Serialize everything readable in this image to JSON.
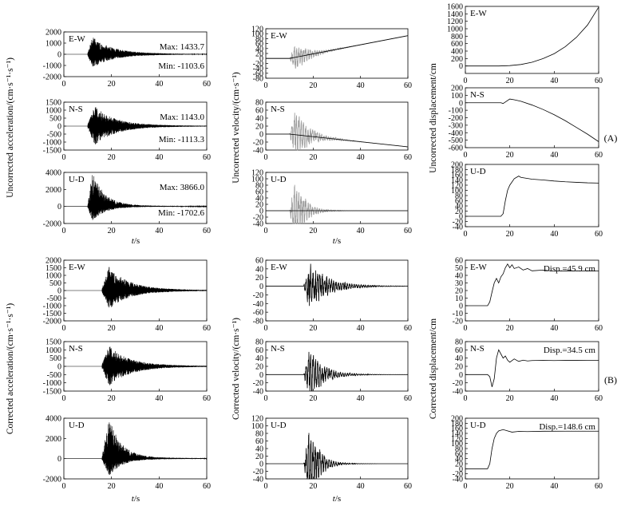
{
  "chart_data": {
    "type": "line",
    "panel_labels": [
      "(A)",
      "(B)"
    ],
    "components": [
      "E-W",
      "N-S",
      "U-D"
    ],
    "x_label": "t/s",
    "ylabels": {
      "unc_acc": "Uncorrected acceleration/(cm·s⁻¹·s⁻¹)",
      "unc_vel": "Uncorrected velocity/(cm·s⁻¹)",
      "unc_disp": "Uncorrected displacement/cm",
      "cor_acc": "Corrected acceleration/(cm·s⁻¹·s⁻¹)",
      "cor_vel": "Corrected velocity/(cm·s⁻¹)",
      "cor_disp": "Corrected displacement/cm"
    },
    "x_range": [
      0,
      60
    ],
    "x_ticks": [
      0,
      20,
      40,
      60
    ],
    "panels": [
      {
        "id": "unc_acc_ew",
        "group": "unc_acc",
        "label": "E-W",
        "kind": "acc",
        "yticks": [
          -2000,
          -1000,
          0,
          1000,
          2000
        ],
        "ylim": [
          -2000,
          2000
        ],
        "onset": 10,
        "peak_t": 12,
        "decay": 8,
        "tail": 0.1,
        "max": 1433.7,
        "min": -1103.6,
        "ann_max": "Max: 1433.7",
        "ann_min": "Min: -1103.6",
        "color": "#000"
      },
      {
        "id": "unc_acc_ns",
        "group": "unc_acc",
        "label": "N-S",
        "kind": "acc",
        "yticks": [
          -1500,
          -1000,
          -500,
          0,
          500,
          1000,
          1500
        ],
        "ylim": [
          -1500,
          1500
        ],
        "onset": 10,
        "peak_t": 13,
        "decay": 8,
        "tail": 0.1,
        "max": 1143.0,
        "min": -1113.3,
        "ann_max": "Max: 1143.0",
        "ann_min": "Min: -1113.3",
        "color": "#000"
      },
      {
        "id": "unc_acc_ud",
        "group": "unc_acc",
        "label": "U-D",
        "kind": "acc",
        "yticks": [
          -2000,
          0,
          2000,
          4000
        ],
        "ylim": [
          -2000,
          4000
        ],
        "onset": 10,
        "peak_t": 12,
        "decay": 5,
        "tail": 0.05,
        "max": 3866.0,
        "min": -1702.6,
        "ann_max": "Max: 3866.0",
        "ann_min": "Min: -1702.6",
        "color": "#000"
      },
      {
        "id": "unc_vel_ew",
        "group": "unc_vel",
        "label": "E-W",
        "kind": "vel_drift",
        "yticks": [
          -80,
          -60,
          -40,
          -20,
          0,
          20,
          40,
          60,
          80,
          100,
          120
        ],
        "ylim": [
          -80,
          120
        ],
        "onset": 10,
        "decay": 6,
        "amp": 55,
        "drift": [
          [
            10,
            0
          ],
          [
            60,
            92
          ]
        ],
        "color": "#999"
      },
      {
        "id": "unc_vel_ns",
        "group": "unc_vel",
        "label": "N-S",
        "kind": "vel_drift",
        "yticks": [
          -40,
          -20,
          0,
          20,
          40,
          60,
          80
        ],
        "ylim": [
          -40,
          80
        ],
        "onset": 10,
        "decay": 6,
        "amp": 60,
        "drift": [
          [
            10,
            0
          ],
          [
            60,
            -32
          ]
        ],
        "color": "#999"
      },
      {
        "id": "unc_vel_ud",
        "group": "unc_vel",
        "label": "U-D",
        "kind": "vel_drift",
        "yticks": [
          -40,
          -20,
          0,
          20,
          40,
          60,
          80,
          100,
          120
        ],
        "ylim": [
          -40,
          120
        ],
        "onset": 10,
        "decay": 4,
        "amp": 100,
        "drift": [
          [
            10,
            0
          ],
          [
            60,
            0
          ]
        ],
        "color": "#999"
      },
      {
        "id": "unc_disp_ew",
        "group": "unc_disp",
        "label": "E-W",
        "kind": "disp_curve",
        "yticks": [
          0,
          200,
          400,
          600,
          800,
          1000,
          1200,
          1400,
          1600
        ],
        "ylim": [
          -200,
          1600
        ],
        "curve": [
          [
            0,
            0
          ],
          [
            15,
            0
          ],
          [
            20,
            10
          ],
          [
            25,
            40
          ],
          [
            30,
            100
          ],
          [
            35,
            200
          ],
          [
            40,
            330
          ],
          [
            45,
            520
          ],
          [
            50,
            770
          ],
          [
            55,
            1100
          ],
          [
            60,
            1580
          ]
        ],
        "color": "#000"
      },
      {
        "id": "unc_disp_ns",
        "group": "unc_disp",
        "label": "N-S",
        "kind": "disp_curve",
        "yticks": [
          -600,
          -500,
          -400,
          -300,
          -200,
          -100,
          0,
          100,
          200
        ],
        "ylim": [
          -600,
          200
        ],
        "curve": [
          [
            0,
            0
          ],
          [
            16,
            0
          ],
          [
            17,
            -10
          ],
          [
            18,
            10
          ],
          [
            20,
            50
          ],
          [
            22,
            40
          ],
          [
            25,
            20
          ],
          [
            30,
            -30
          ],
          [
            35,
            -90
          ],
          [
            40,
            -160
          ],
          [
            45,
            -240
          ],
          [
            50,
            -330
          ],
          [
            55,
            -420
          ],
          [
            60,
            -520
          ]
        ],
        "color": "#000"
      },
      {
        "id": "unc_disp_ud",
        "group": "unc_disp",
        "label": "U-D",
        "kind": "disp_curve",
        "yticks": [
          -40,
          -20,
          0,
          20,
          40,
          60,
          80,
          100,
          120,
          140,
          160,
          180,
          200
        ],
        "ylim": [
          -40,
          200
        ],
        "curve": [
          [
            0,
            0
          ],
          [
            16,
            0
          ],
          [
            17,
            10
          ],
          [
            18,
            60
          ],
          [
            19,
            100
          ],
          [
            20,
            120
          ],
          [
            22,
            145
          ],
          [
            24,
            155
          ],
          [
            25,
            150
          ],
          [
            30,
            143
          ],
          [
            35,
            140
          ],
          [
            40,
            136
          ],
          [
            45,
            133
          ],
          [
            50,
            131
          ],
          [
            55,
            129
          ],
          [
            60,
            128
          ]
        ],
        "color": "#000"
      },
      {
        "id": "cor_acc_ew",
        "group": "cor_acc",
        "label": "E-W",
        "kind": "acc",
        "yticks": [
          -2000,
          -1500,
          -1000,
          -500,
          0,
          500,
          1000,
          1500,
          2000
        ],
        "ylim": [
          -2000,
          2000
        ],
        "onset": 16,
        "peak_t": 19,
        "decay": 8,
        "tail": 0.1,
        "max": 1433.7,
        "min": -1103.6,
        "ann_max": "",
        "ann_min": "",
        "color": "#000"
      },
      {
        "id": "cor_acc_ns",
        "group": "cor_acc",
        "label": "N-S",
        "kind": "acc",
        "yticks": [
          -1500,
          -1000,
          -500,
          0,
          500,
          1000,
          1500
        ],
        "ylim": [
          -1500,
          1500
        ],
        "onset": 16,
        "peak_t": 19,
        "decay": 8,
        "tail": 0.1,
        "max": 1143.0,
        "min": -1113.3,
        "ann_max": "",
        "ann_min": "",
        "color": "#000"
      },
      {
        "id": "cor_acc_ud",
        "group": "cor_acc",
        "label": "U-D",
        "kind": "acc",
        "yticks": [
          -2000,
          0,
          2000,
          4000
        ],
        "ylim": [
          -2000,
          4000
        ],
        "onset": 16,
        "peak_t": 19,
        "decay": 5,
        "tail": 0.05,
        "max": 3866.0,
        "min": -1702.6,
        "ann_max": "",
        "ann_min": "",
        "color": "#000"
      },
      {
        "id": "cor_vel_ew",
        "group": "cor_vel",
        "label": "E-W",
        "kind": "vel",
        "yticks": [
          -80,
          -60,
          -40,
          -20,
          0,
          20,
          40,
          60
        ],
        "ylim": [
          -80,
          60
        ],
        "onset": 16,
        "decay": 8,
        "amp": 55,
        "color": "#000"
      },
      {
        "id": "cor_vel_ns",
        "group": "cor_vel",
        "label": "N-S",
        "kind": "vel",
        "yticks": [
          -40,
          -20,
          0,
          20,
          40,
          60,
          80
        ],
        "ylim": [
          -40,
          80
        ],
        "onset": 16,
        "decay": 6,
        "amp": 60,
        "color": "#000"
      },
      {
        "id": "cor_vel_ud",
        "group": "cor_vel",
        "label": "U-D",
        "kind": "vel",
        "yticks": [
          -40,
          -20,
          0,
          20,
          40,
          60,
          80,
          100,
          120
        ],
        "ylim": [
          -40,
          120
        ],
        "onset": 16,
        "decay": 4,
        "amp": 100,
        "color": "#000"
      },
      {
        "id": "cor_disp_ew",
        "group": "cor_disp",
        "label": "E-W",
        "kind": "disp_curve",
        "yticks": [
          -20,
          -10,
          0,
          10,
          20,
          30,
          40,
          50,
          60
        ],
        "ylim": [
          -20,
          60
        ],
        "curve": [
          [
            0,
            0
          ],
          [
            10,
            0
          ],
          [
            11,
            5
          ],
          [
            12,
            18
          ],
          [
            13,
            30
          ],
          [
            14,
            36
          ],
          [
            15,
            30
          ],
          [
            16,
            38
          ],
          [
            17,
            42
          ],
          [
            18,
            50
          ],
          [
            19,
            55
          ],
          [
            20,
            50
          ],
          [
            21,
            54
          ],
          [
            22,
            49
          ],
          [
            24,
            51
          ],
          [
            26,
            47
          ],
          [
            28,
            49
          ],
          [
            30,
            46
          ],
          [
            35,
            47
          ],
          [
            40,
            45.5
          ],
          [
            45,
            46
          ],
          [
            50,
            45.8
          ],
          [
            55,
            46
          ],
          [
            60,
            45.9
          ]
        ],
        "ann_disp": "Disp.=45.9 cm",
        "color": "#000"
      },
      {
        "id": "cor_disp_ns",
        "group": "cor_disp",
        "label": "N-S",
        "kind": "disp_curve",
        "yticks": [
          -40,
          -20,
          0,
          20,
          40,
          60,
          80
        ],
        "ylim": [
          -40,
          80
        ],
        "curve": [
          [
            0,
            0
          ],
          [
            10,
            0
          ],
          [
            11,
            -5
          ],
          [
            12,
            -30
          ],
          [
            13,
            -10
          ],
          [
            14,
            40
          ],
          [
            15,
            60
          ],
          [
            16,
            50
          ],
          [
            17,
            40
          ],
          [
            18,
            45
          ],
          [
            19,
            35
          ],
          [
            20,
            30
          ],
          [
            22,
            38
          ],
          [
            24,
            32
          ],
          [
            26,
            35
          ],
          [
            28,
            33
          ],
          [
            30,
            34
          ],
          [
            35,
            34.5
          ],
          [
            40,
            34
          ],
          [
            45,
            34.5
          ],
          [
            50,
            34.4
          ],
          [
            55,
            34.5
          ],
          [
            60,
            34.5
          ]
        ],
        "ann_disp": "Disp.=34.5 cm",
        "color": "#000"
      },
      {
        "id": "cor_disp_ud",
        "group": "cor_disp",
        "label": "U-D",
        "kind": "disp_curve",
        "yticks": [
          -40,
          -20,
          0,
          20,
          40,
          60,
          80,
          100,
          120,
          140,
          160,
          180,
          200
        ],
        "ylim": [
          -40,
          200
        ],
        "curve": [
          [
            0,
            0
          ],
          [
            10,
            0
          ],
          [
            11,
            20
          ],
          [
            12,
            80
          ],
          [
            13,
            120
          ],
          [
            14,
            140
          ],
          [
            15,
            150
          ],
          [
            17,
            155
          ],
          [
            19,
            150
          ],
          [
            21,
            145
          ],
          [
            24,
            148
          ],
          [
            28,
            147
          ],
          [
            35,
            148.5
          ],
          [
            45,
            148.6
          ],
          [
            60,
            148.6
          ]
        ],
        "ann_disp": "Disp.=148.6 cm",
        "color": "#000"
      }
    ]
  }
}
